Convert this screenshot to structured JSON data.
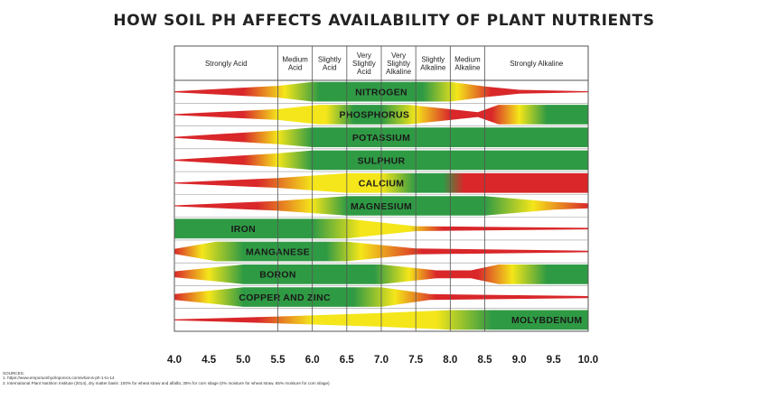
{
  "title": "HOW SOIL PH AFFECTS AVAILABILITY OF PLANT NUTRIENTS",
  "categories": [
    {
      "lines": [
        "Strongly Acid"
      ]
    },
    {
      "lines": [
        "Medium",
        "Acid"
      ]
    },
    {
      "lines": [
        "Slightly",
        "Acid"
      ]
    },
    {
      "lines": [
        "Very",
        "Slightly",
        "Acid"
      ]
    },
    {
      "lines": [
        "Very",
        "Slightly",
        "Alkaline"
      ]
    },
    {
      "lines": [
        "Slightly",
        "Alkaline"
      ]
    },
    {
      "lines": [
        "Medium",
        "Alkaline"
      ]
    },
    {
      "lines": [
        "Strongly Alkaline"
      ]
    }
  ],
  "ph_ticks": [
    "4.0",
    "4.5",
    "5.0",
    "5.5",
    "6.0",
    "6.5",
    "7.0",
    "7.5",
    "8.0",
    "8.5",
    "9.0",
    "9.5",
    "10.0"
  ],
  "ph_range": [
    4.0,
    10.0
  ],
  "category_boundaries_ph": [
    5.5,
    6.0,
    6.5,
    7.0,
    7.5,
    8.0,
    8.5
  ],
  "colors": {
    "red": "#d9272a",
    "yellow": "#f4e61a",
    "green": "#2f9a44",
    "grid": "#555555"
  },
  "nutrients": [
    {
      "name": "NITROGEN",
      "label_ph": 7.0,
      "thickness": [
        [
          4.0,
          0.05
        ],
        [
          5.5,
          0.6
        ],
        [
          6.0,
          1.0
        ],
        [
          8.0,
          1.0
        ],
        [
          8.5,
          0.55
        ],
        [
          9.0,
          0.2
        ],
        [
          10.0,
          0.05
        ]
      ],
      "colors": [
        [
          4.0,
          "red"
        ],
        [
          5.0,
          "red"
        ],
        [
          5.6,
          "yellow"
        ],
        [
          6.1,
          "green"
        ],
        [
          7.6,
          "green"
        ],
        [
          8.1,
          "yellow"
        ],
        [
          8.6,
          "red"
        ],
        [
          10.0,
          "red"
        ]
      ]
    },
    {
      "name": "PHOSPHORUS",
      "label_ph": 6.9,
      "thickness": [
        [
          4.0,
          0.05
        ],
        [
          5.5,
          0.55
        ],
        [
          6.1,
          1.0
        ],
        [
          7.4,
          1.0
        ],
        [
          8.2,
          0.4
        ],
        [
          8.4,
          0.25
        ],
        [
          8.7,
          1.0
        ],
        [
          10.0,
          1.0
        ]
      ],
      "colors": [
        [
          4.0,
          "red"
        ],
        [
          5.0,
          "red"
        ],
        [
          5.5,
          "yellow"
        ],
        [
          6.2,
          "yellow"
        ],
        [
          6.6,
          "green"
        ],
        [
          7.0,
          "green"
        ],
        [
          7.5,
          "yellow"
        ],
        [
          8.0,
          "red"
        ],
        [
          8.6,
          "red"
        ],
        [
          9.0,
          "yellow"
        ],
        [
          9.4,
          "green"
        ],
        [
          10.0,
          "green"
        ]
      ]
    },
    {
      "name": "POTASSIUM",
      "label_ph": 7.0,
      "thickness": [
        [
          4.0,
          0.05
        ],
        [
          5.5,
          0.7
        ],
        [
          6.0,
          1.0
        ],
        [
          10.0,
          1.0
        ]
      ],
      "colors": [
        [
          4.0,
          "red"
        ],
        [
          5.0,
          "red"
        ],
        [
          5.5,
          "yellow"
        ],
        [
          6.0,
          "green"
        ],
        [
          10.0,
          "green"
        ]
      ]
    },
    {
      "name": "SULPHUR",
      "label_ph": 7.0,
      "thickness": [
        [
          4.0,
          0.05
        ],
        [
          5.5,
          0.7
        ],
        [
          6.0,
          1.0
        ],
        [
          10.0,
          1.0
        ]
      ],
      "colors": [
        [
          4.0,
          "red"
        ],
        [
          5.0,
          "red"
        ],
        [
          5.5,
          "yellow"
        ],
        [
          6.0,
          "green"
        ],
        [
          10.0,
          "green"
        ]
      ]
    },
    {
      "name": "CALCIUM",
      "label_ph": 7.0,
      "thickness": [
        [
          4.0,
          0.05
        ],
        [
          5.5,
          0.5
        ],
        [
          6.5,
          1.0
        ],
        [
          10.0,
          1.0
        ]
      ],
      "colors": [
        [
          4.0,
          "red"
        ],
        [
          5.2,
          "red"
        ],
        [
          6.0,
          "yellow"
        ],
        [
          7.0,
          "yellow"
        ],
        [
          7.5,
          "green"
        ],
        [
          7.9,
          "green"
        ],
        [
          8.2,
          "red"
        ],
        [
          10.0,
          "red"
        ]
      ]
    },
    {
      "name": "MAGNESIUM",
      "label_ph": 7.0,
      "thickness": [
        [
          4.0,
          0.05
        ],
        [
          5.5,
          0.5
        ],
        [
          6.5,
          1.0
        ],
        [
          8.5,
          1.0
        ],
        [
          9.5,
          0.4
        ],
        [
          10.0,
          0.25
        ]
      ],
      "colors": [
        [
          4.0,
          "red"
        ],
        [
          5.2,
          "red"
        ],
        [
          6.0,
          "yellow"
        ],
        [
          6.5,
          "green"
        ],
        [
          8.5,
          "green"
        ],
        [
          9.2,
          "yellow"
        ],
        [
          10.0,
          "red"
        ]
      ]
    },
    {
      "name": "IRON",
      "label_ph": 5.0,
      "thickness": [
        [
          4.0,
          1.0
        ],
        [
          6.5,
          1.0
        ],
        [
          7.5,
          0.25
        ],
        [
          10.0,
          0.08
        ]
      ],
      "colors": [
        [
          4.0,
          "green"
        ],
        [
          6.0,
          "green"
        ],
        [
          6.7,
          "yellow"
        ],
        [
          7.4,
          "yellow"
        ],
        [
          7.9,
          "red"
        ],
        [
          10.0,
          "red"
        ]
      ]
    },
    {
      "name": "MANGANESE",
      "label_ph": 5.5,
      "thickness": [
        [
          4.0,
          0.25
        ],
        [
          4.6,
          1.0
        ],
        [
          6.5,
          1.0
        ],
        [
          7.5,
          0.3
        ],
        [
          10.0,
          0.08
        ]
      ],
      "colors": [
        [
          4.0,
          "red"
        ],
        [
          4.4,
          "yellow"
        ],
        [
          5.0,
          "green"
        ],
        [
          6.2,
          "green"
        ],
        [
          6.7,
          "yellow"
        ],
        [
          7.6,
          "red"
        ],
        [
          10.0,
          "red"
        ]
      ]
    },
    {
      "name": "BORON",
      "label_ph": 5.5,
      "thickness": [
        [
          4.0,
          0.3
        ],
        [
          5.0,
          1.0
        ],
        [
          7.0,
          1.0
        ],
        [
          7.8,
          0.4
        ],
        [
          8.3,
          0.4
        ],
        [
          8.7,
          1.0
        ],
        [
          10.0,
          1.0
        ]
      ],
      "colors": [
        [
          4.0,
          "red"
        ],
        [
          4.5,
          "yellow"
        ],
        [
          5.0,
          "green"
        ],
        [
          6.9,
          "green"
        ],
        [
          7.4,
          "yellow"
        ],
        [
          7.8,
          "red"
        ],
        [
          8.4,
          "red"
        ],
        [
          8.9,
          "yellow"
        ],
        [
          9.4,
          "green"
        ],
        [
          10.0,
          "green"
        ]
      ]
    },
    {
      "name": "COPPER AND ZINC",
      "label_ph": 5.6,
      "thickness": [
        [
          4.0,
          0.3
        ],
        [
          5.0,
          1.0
        ],
        [
          7.0,
          1.0
        ],
        [
          7.7,
          0.3
        ],
        [
          10.0,
          0.1
        ]
      ],
      "colors": [
        [
          4.0,
          "red"
        ],
        [
          4.5,
          "yellow"
        ],
        [
          5.0,
          "green"
        ],
        [
          6.6,
          "green"
        ],
        [
          7.2,
          "yellow"
        ],
        [
          7.8,
          "red"
        ],
        [
          10.0,
          "red"
        ]
      ]
    },
    {
      "name": "MOLYBDENUM",
      "label_ph": 9.4,
      "thickness": [
        [
          4.0,
          0.05
        ],
        [
          5.5,
          0.35
        ],
        [
          7.0,
          0.7
        ],
        [
          8.0,
          1.0
        ],
        [
          10.0,
          1.0
        ]
      ],
      "colors": [
        [
          4.0,
          "red"
        ],
        [
          5.2,
          "red"
        ],
        [
          6.0,
          "yellow"
        ],
        [
          7.8,
          "yellow"
        ],
        [
          8.6,
          "green"
        ],
        [
          10.0,
          "green"
        ]
      ]
    }
  ],
  "sources": [
    "SOURCES:",
    "1. https://www.emporiumhydroponics.com/what-is-ph-1-to-14",
    "2. International Plant Nutrition Institute (2014), dry matter basis: 100% for wheat straw and alfalfa; 35% for corn silage (0% moisture for wheat straw, 65% moisture for corn silage)."
  ]
}
